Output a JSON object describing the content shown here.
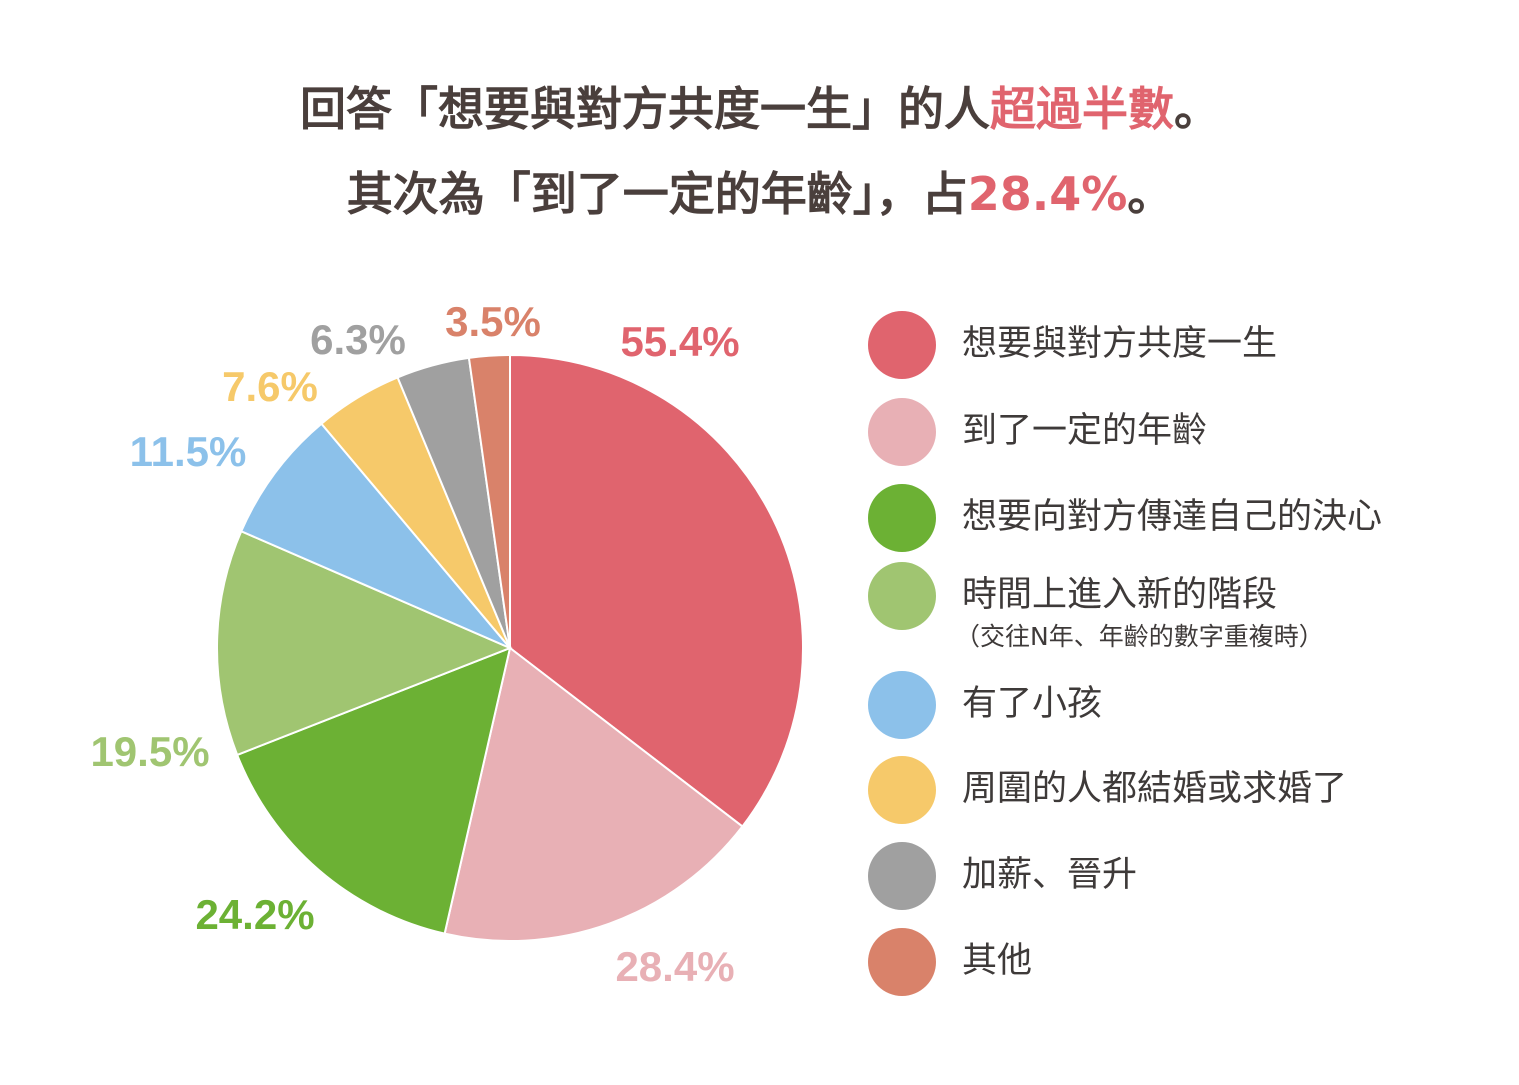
{
  "chart_data": {
    "type": "pie",
    "title_lines": [
      [
        {
          "text": "回答「想要與對方共度一生」的人"
        },
        {
          "text": "超過半數",
          "color": "#e0646e"
        },
        {
          "text": "。"
        }
      ],
      [
        {
          "text": "其次為「到了一定的年齡」，占"
        },
        {
          "text": "28.4%",
          "color": "#e0646e"
        },
        {
          "text": "。"
        }
      ]
    ],
    "categories": [
      "想要與對方共度一生",
      "到了一定的年齡",
      "想要向對方傳達自己的決心",
      "時間上進入新的階段",
      "有了小孩",
      "周圍的人都結婚或求婚了",
      "加薪、晉升",
      "其他"
    ],
    "category_notes": [
      null,
      null,
      null,
      "（交往N年、年齡的數字重複時）",
      null,
      null,
      null,
      null
    ],
    "values": [
      55.4,
      28.4,
      24.2,
      19.5,
      11.5,
      7.6,
      6.3,
      3.5
    ],
    "value_labels": [
      "55.4%",
      "28.4%",
      "24.2%",
      "19.5%",
      "11.5%",
      "7.6%",
      "6.3%",
      "3.5%"
    ],
    "colors": [
      "#e0646e",
      "#e8b0b5",
      "#6cb134",
      "#a0c571",
      "#8cc1ea",
      "#f6c96a",
      "#a0a0a0",
      "#d9826a"
    ]
  }
}
